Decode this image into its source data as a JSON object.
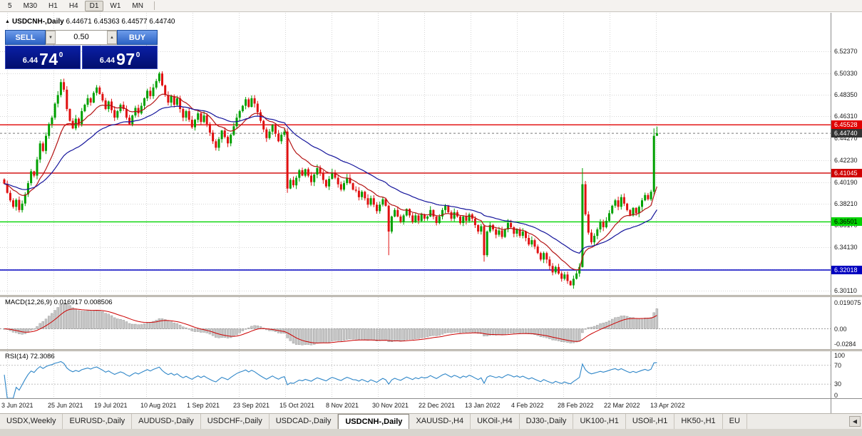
{
  "toolbar": {
    "timeframes": [
      "5",
      "M30",
      "H1",
      "H4",
      "D1",
      "W1",
      "MN"
    ],
    "active": "D1"
  },
  "window": {
    "title": {
      "symbol": "USDCNH-,Daily",
      "ohlc": "6.44671 6.45363 6.44577 6.44740"
    }
  },
  "icons": {
    "title_icon": "▲",
    "spin_up": "▲",
    "spin_down": "▼",
    "scroll_left": "◀"
  },
  "trade_panel": {
    "sell_label": "SELL",
    "buy_label": "BUY",
    "volume": "0.50",
    "sell_price": {
      "prefix": "6.44",
      "big": "74",
      "sup": "0"
    },
    "buy_price": {
      "prefix": "6.44",
      "big": "97",
      "sup": "0"
    }
  },
  "macd_panel": {
    "title": "MACD(12,26,9) 0.016917 0.008506",
    "axis_top": "0.019075",
    "axis_zero": "0.00",
    "axis_bottom": "-0.0284"
  },
  "rsi_panel": {
    "title": "RSI(14) 72.3086",
    "levels": [
      "100",
      "70",
      "30",
      "0"
    ]
  },
  "tabs": {
    "items": [
      "USDX,Weekly",
      "EURUSD-,Daily",
      "AUDUSD-,Daily",
      "USDCHF-,Daily",
      "USDCAD-,Daily",
      "USDCNH-,Daily",
      "XAUUSD-,H4",
      "UKOil-,H4",
      "DJ30-,Daily",
      "UK100-,H1",
      "USOil-,H1",
      "HK50-,H1",
      "EU"
    ],
    "active": "USDCNH-,Daily"
  },
  "chart_data": {
    "type": "candlestick",
    "symbol": "USDCNH",
    "timeframe": "Daily",
    "price_axis": [
      "6.52370",
      "6.50330",
      "6.48350",
      "6.46310",
      "6.44270",
      "6.42230",
      "6.40190",
      "6.38210",
      "6.36170",
      "6.34130",
      "6.32090",
      "6.30110"
    ],
    "date_axis": [
      "3 Jun 2021",
      "25 Jun 2021",
      "19 Jul 2021",
      "10 Aug 2021",
      "1 Sep 2021",
      "23 Sep 2021",
      "15 Oct 2021",
      "8 Nov 2021",
      "30 Nov 2021",
      "22 Dec 2021",
      "13 Jan 2022",
      "4 Feb 2022",
      "28 Feb 2022",
      "22 Mar 2022",
      "13 Apr 2022"
    ],
    "hlines": [
      {
        "price": 6.45528,
        "label": "6.45528",
        "color": "#E00000",
        "text": "#FFFFFF"
      },
      {
        "price": 6.41045,
        "label": "6.41045",
        "color": "#D00000",
        "text": "#FFFFFF"
      },
      {
        "price": 6.36501,
        "label": "6.36501",
        "color": "#00D300",
        "text": "#000000"
      },
      {
        "price": 6.32018,
        "label": "6.32018",
        "color": "#0000C0",
        "text": "#FFFFFF"
      }
    ],
    "current_price": {
      "value": 6.4474,
      "label": "6.44740",
      "bg": "#333333",
      "text": "#FFFFFF"
    },
    "scale": {
      "p_top": 6.5595,
      "p_bottom": 6.297
    },
    "ma": [
      {
        "period": 13,
        "color": "#B41414"
      },
      {
        "period": 34,
        "color": "#14149B"
      }
    ],
    "indicators": {
      "macd": {
        "fast": 12,
        "slow": 26,
        "signal": 9
      },
      "rsi": {
        "period": 14
      }
    },
    "colors": {
      "up": "#00A000",
      "down": "#E01010",
      "grid": "#D6D6D6",
      "macd_hist": "#C6C6C6",
      "macd_signal": "#CC0000",
      "rsi": "#2E86C8"
    },
    "closes": [
      6.4005,
      6.392,
      6.385,
      6.379,
      6.3855,
      6.376,
      6.382,
      6.3905,
      6.401,
      6.412,
      6.408,
      6.423,
      6.438,
      6.431,
      6.445,
      6.456,
      6.462,
      6.475,
      6.483,
      6.495,
      6.488,
      6.47,
      6.459,
      6.452,
      6.461,
      6.456,
      6.468,
      6.474,
      6.48,
      6.476,
      6.485,
      6.49,
      6.484,
      6.478,
      6.47,
      6.477,
      6.469,
      6.462,
      6.468,
      6.474,
      6.47,
      6.462,
      6.456,
      6.464,
      6.471,
      6.466,
      6.473,
      6.48,
      6.487,
      6.482,
      6.49,
      6.496,
      6.503,
      6.492,
      6.483,
      6.476,
      6.482,
      6.474,
      6.48,
      6.47,
      6.462,
      6.468,
      6.46,
      6.453,
      6.46,
      6.466,
      6.458,
      6.464,
      6.456,
      6.448,
      6.44,
      6.434,
      6.442,
      6.45,
      6.444,
      6.438,
      6.446,
      6.454,
      6.462,
      6.468,
      6.473,
      6.479,
      6.472,
      6.48,
      6.475,
      6.467,
      6.459,
      6.451,
      6.443,
      6.449,
      6.455,
      6.447,
      6.44,
      6.446,
      6.449,
      6.396,
      6.404,
      6.399,
      6.406,
      6.413,
      6.408,
      6.414,
      6.408,
      6.402,
      6.409,
      6.415,
      6.41,
      6.404,
      6.398,
      6.405,
      6.411,
      6.406,
      6.4,
      6.395,
      6.401,
      6.406,
      6.401,
      6.395,
      6.394,
      6.388,
      6.393,
      6.387,
      6.381,
      6.387,
      6.381,
      6.375,
      6.381,
      6.386,
      6.38,
      6.356,
      6.37,
      6.376,
      6.37,
      6.365,
      6.371,
      6.377,
      6.371,
      6.365,
      6.371,
      6.366,
      6.372,
      6.368,
      6.37,
      6.376,
      6.37,
      6.364,
      6.37,
      6.376,
      6.38,
      6.374,
      6.368,
      6.374,
      6.37,
      6.364,
      6.37,
      6.366,
      6.372,
      6.368,
      6.362,
      6.356,
      6.361,
      6.334,
      6.356,
      6.362,
      6.358,
      6.353,
      6.357,
      6.351,
      6.358,
      6.364,
      6.36,
      6.354,
      6.358,
      6.352,
      6.356,
      6.35,
      6.344,
      6.348,
      6.342,
      6.336,
      6.33,
      6.336,
      6.33,
      6.324,
      6.318,
      6.323,
      6.317,
      6.312,
      6.316,
      6.31,
      6.306,
      6.312,
      6.317,
      6.323,
      6.4,
      6.372,
      6.355,
      6.346,
      6.352,
      6.358,
      6.365,
      6.36,
      6.366,
      6.373,
      6.38,
      6.385,
      6.379,
      6.388,
      6.382,
      6.376,
      6.371,
      6.378,
      6.373,
      6.379,
      6.385,
      6.39,
      6.386,
      6.393,
      6.445,
      6.4474
    ],
    "wick_overrides": {
      "95": {
        "low": 6.392
      },
      "129": {
        "low": 6.334
      },
      "161": {
        "low": 6.328
      },
      "194": {
        "high": 6.415
      },
      "218": {
        "high": 6.452
      },
      "219": {
        "high": 6.45363,
        "low": 6.44577
      }
    }
  }
}
